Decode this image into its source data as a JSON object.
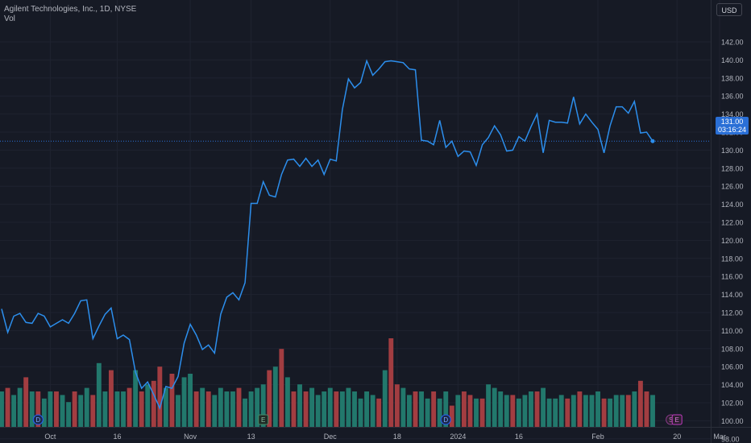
{
  "legend": {
    "title": "Agilent Technologies, Inc., 1D, NYSE",
    "volume_label": "Vol"
  },
  "currency": "USD",
  "last_price": {
    "value": "131.00",
    "countdown": "03:16:24"
  },
  "colors": {
    "line": "#2c8eec",
    "up_volume": "#22786c",
    "down_volume": "#a23d41",
    "background": "#161a25",
    "grid": "#1f2330"
  },
  "chart_data": {
    "type": "line",
    "title": "Agilent Technologies, Inc., 1D, NYSE",
    "ylim": [
      97,
      143
    ],
    "yticks": [
      "142.00",
      "140.00",
      "138.00",
      "136.00",
      "134.00",
      "132.00",
      "130.00",
      "128.00",
      "126.00",
      "124.00",
      "122.00",
      "120.00",
      "118.00",
      "116.00",
      "114.00",
      "112.00",
      "110.00",
      "108.00",
      "106.00",
      "104.00",
      "102.00",
      "100.00",
      "98.00"
    ],
    "xticks": [
      {
        "label": "Oct",
        "index": 8
      },
      {
        "label": "16",
        "index": 19
      },
      {
        "label": "Nov",
        "index": 31
      },
      {
        "label": "13",
        "index": 41
      },
      {
        "label": "Dec",
        "index": 54
      },
      {
        "label": "18",
        "index": 65
      },
      {
        "label": "2024",
        "index": 75
      },
      {
        "label": "16",
        "index": 85
      },
      {
        "label": "Feb",
        "index": 98
      },
      {
        "label": "20",
        "index": 111
      },
      {
        "label": "Mar",
        "index": 118
      }
    ],
    "series": [
      {
        "values": [
          112.4,
          109.8,
          111.6,
          111.9,
          110.9,
          110.8,
          111.9,
          111.6,
          110.4,
          110.8,
          111.2,
          110.8,
          111.9,
          113.3,
          113.4,
          109.1,
          110.5,
          111.8,
          112.5,
          109.1,
          109.5,
          109.0,
          105.4,
          103.6,
          104.3,
          102.9,
          101.4,
          103.8,
          103.6,
          104.9,
          108.6,
          110.7,
          109.5,
          107.9,
          108.4,
          107.5,
          111.8,
          113.7,
          114.2,
          113.4,
          115.3,
          124.1,
          124.1,
          126.5,
          125.0,
          124.8,
          127.3,
          128.9,
          129.0,
          128.2,
          129.1,
          128.2,
          128.9,
          127.3,
          129.0,
          128.8,
          134.5,
          137.9,
          136.9,
          137.5,
          139.9,
          138.3,
          139.0,
          139.8,
          139.9,
          139.8,
          139.7,
          139.0,
          138.9,
          131.1,
          131.0,
          130.6,
          133.3,
          130.3,
          131.0,
          129.3,
          129.9,
          129.8,
          128.3,
          130.6,
          131.4,
          132.7,
          131.7,
          129.9,
          130.0,
          131.5,
          131.0,
          132.6,
          134.0,
          129.7,
          133.3,
          133.1,
          133.1,
          133.0,
          135.9,
          132.9,
          134.0,
          133.1,
          132.3,
          129.7,
          132.7,
          134.8,
          134.8,
          134.1,
          135.4,
          131.9,
          132.0,
          131.0
        ]
      }
    ],
    "volume": {
      "values": [
        1.0,
        1.1,
        0.9,
        1.1,
        1.4,
        1.0,
        1.0,
        0.8,
        1.0,
        1.0,
        0.9,
        0.7,
        1.0,
        0.9,
        1.1,
        0.9,
        1.8,
        1.0,
        1.6,
        1.0,
        1.0,
        1.1,
        1.6,
        1.0,
        1.2,
        1.3,
        1.7,
        1.1,
        1.5,
        0.9,
        1.4,
        1.5,
        1.0,
        1.1,
        1.0,
        0.9,
        1.1,
        1.0,
        1.0,
        1.1,
        0.8,
        1.0,
        1.1,
        1.2,
        1.6,
        1.7,
        2.2,
        1.4,
        1.0,
        1.2,
        1.0,
        1.1,
        0.9,
        1.0,
        1.1,
        1.0,
        1.0,
        1.1,
        1.0,
        0.8,
        1.0,
        0.9,
        0.8,
        1.6,
        2.5,
        1.2,
        1.1,
        0.9,
        1.0,
        1.0,
        0.8,
        1.0,
        0.8,
        1.0,
        0.6,
        0.9,
        1.0,
        0.9,
        0.8,
        0.8,
        1.2,
        1.1,
        1.0,
        0.9,
        0.9,
        0.8,
        0.9,
        1.0,
        1.0,
        1.1,
        0.8,
        0.8,
        0.9,
        0.8,
        0.9,
        1.0,
        0.9,
        0.9,
        1.0,
        0.8,
        0.8,
        0.9,
        0.9,
        0.9,
        1.0,
        1.3,
        1.0,
        0.9
      ],
      "up": [
        1,
        0,
        1,
        1,
        0,
        1,
        0,
        1,
        1,
        0,
        1,
        1,
        0,
        1,
        1,
        0,
        1,
        1,
        0,
        1,
        1,
        0,
        1,
        0,
        1,
        0,
        0,
        1,
        0,
        1,
        1,
        1,
        0,
        1,
        0,
        1,
        1,
        1,
        1,
        0,
        1,
        1,
        1,
        1,
        0,
        1,
        0,
        1,
        0,
        1,
        0,
        1,
        1,
        1,
        1,
        0,
        1,
        1,
        1,
        1,
        1,
        1,
        0,
        1,
        0,
        0,
        1,
        1,
        0,
        1,
        1,
        0,
        1,
        1,
        0,
        1,
        0,
        0,
        1,
        0,
        1,
        1,
        1,
        1,
        0,
        1,
        1,
        1,
        0,
        1,
        1,
        1,
        1,
        0,
        1,
        0,
        1,
        1,
        1,
        0,
        1,
        1,
        1,
        0,
        1,
        0,
        0,
        1
      ]
    },
    "markers": [
      {
        "type": "dividend",
        "label": "D",
        "index": 6
      },
      {
        "type": "earnings",
        "label": "E",
        "index": 43
      },
      {
        "type": "dividend",
        "label": "D",
        "index": 73
      },
      {
        "type": "split",
        "label": "S",
        "index": 110
      },
      {
        "type": "earnings-upcoming",
        "label": "E",
        "index": 111
      }
    ]
  }
}
